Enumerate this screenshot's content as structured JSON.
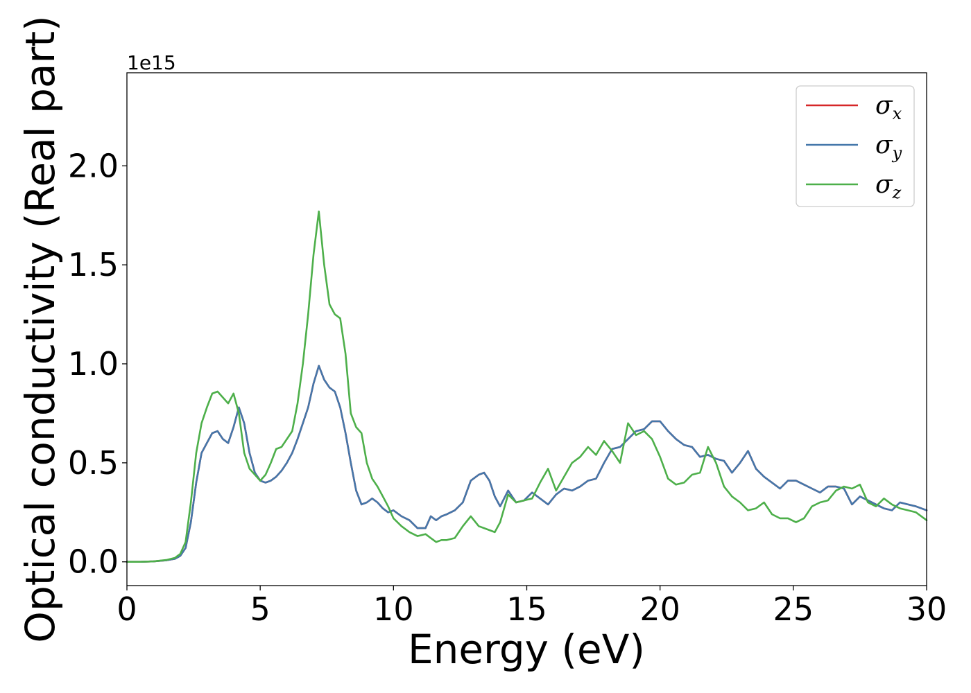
{
  "chart_data": {
    "type": "line",
    "xlabel": "Energy (eV)",
    "ylabel": "Optical conductivity (Real part)",
    "y_offset_label": "1e15",
    "xlim": [
      0,
      30
    ],
    "ylim": [
      -0.12,
      2.47
    ],
    "x_ticks": [
      0,
      5,
      10,
      15,
      20,
      25,
      30
    ],
    "x_tick_labels": [
      "0",
      "5",
      "10",
      "15",
      "20",
      "25",
      "30"
    ],
    "y_ticks": [
      0.0,
      0.5,
      1.0,
      1.5,
      2.0
    ],
    "y_tick_labels": [
      "0.0",
      "0.5",
      "1.0",
      "1.5",
      "2.0"
    ],
    "grid": false,
    "legend_position": "top-right",
    "x": [
      0,
      0.5,
      1,
      1.5,
      1.8,
      2.0,
      2.2,
      2.4,
      2.6,
      2.8,
      3.0,
      3.2,
      3.4,
      3.6,
      3.8,
      4.0,
      4.2,
      4.4,
      4.6,
      4.8,
      5.0,
      5.2,
      5.4,
      5.6,
      5.8,
      6.0,
      6.2,
      6.4,
      6.6,
      6.8,
      7.0,
      7.2,
      7.4,
      7.6,
      7.8,
      8.0,
      8.2,
      8.4,
      8.6,
      8.8,
      9.0,
      9.2,
      9.4,
      9.6,
      9.8,
      10.0,
      10.3,
      10.6,
      10.9,
      11.2,
      11.4,
      11.6,
      11.8,
      12.0,
      12.3,
      12.6,
      12.9,
      13.2,
      13.4,
      13.6,
      13.8,
      14.0,
      14.3,
      14.6,
      14.9,
      15.2,
      15.5,
      15.8,
      16.1,
      16.4,
      16.7,
      17.0,
      17.3,
      17.6,
      17.9,
      18.2,
      18.5,
      18.8,
      19.1,
      19.4,
      19.7,
      20.0,
      20.3,
      20.6,
      20.9,
      21.2,
      21.5,
      21.8,
      22.1,
      22.4,
      22.7,
      23.0,
      23.3,
      23.6,
      23.9,
      24.2,
      24.5,
      24.8,
      25.1,
      25.4,
      25.7,
      26.0,
      26.3,
      26.6,
      26.9,
      27.2,
      27.5,
      27.8,
      28.1,
      28.4,
      28.7,
      29.0,
      29.3,
      29.6,
      30.0
    ],
    "series": [
      {
        "name": "σx",
        "color": "#d62728",
        "values": [
          0,
          0,
          0.002,
          0.008,
          0.015,
          0.03,
          0.07,
          0.2,
          0.4,
          0.55,
          0.6,
          0.65,
          0.66,
          0.62,
          0.6,
          0.68,
          0.78,
          0.7,
          0.55,
          0.45,
          0.41,
          0.4,
          0.41,
          0.43,
          0.46,
          0.5,
          0.55,
          0.62,
          0.7,
          0.78,
          0.9,
          0.99,
          0.92,
          0.88,
          0.86,
          0.78,
          0.65,
          0.5,
          0.36,
          0.29,
          0.3,
          0.32,
          0.3,
          0.27,
          0.25,
          0.26,
          0.23,
          0.21,
          0.17,
          0.17,
          0.23,
          0.21,
          0.23,
          0.24,
          0.26,
          0.3,
          0.41,
          0.44,
          0.45,
          0.41,
          0.33,
          0.28,
          0.36,
          0.3,
          0.31,
          0.35,
          0.32,
          0.29,
          0.34,
          0.37,
          0.36,
          0.38,
          0.41,
          0.42,
          0.5,
          0.57,
          0.58,
          0.62,
          0.66,
          0.67,
          0.71,
          0.71,
          0.66,
          0.62,
          0.59,
          0.58,
          0.53,
          0.54,
          0.52,
          0.51,
          0.45,
          0.5,
          0.56,
          0.47,
          0.43,
          0.4,
          0.37,
          0.41,
          0.41,
          0.39,
          0.37,
          0.35,
          0.38,
          0.38,
          0.37,
          0.29,
          0.33,
          0.31,
          0.29,
          0.27,
          0.26,
          0.3,
          0.29,
          0.28,
          0.26
        ]
      },
      {
        "name": "σy",
        "color": "#4477aa",
        "values": [
          0,
          0,
          0.002,
          0.008,
          0.015,
          0.03,
          0.07,
          0.2,
          0.4,
          0.55,
          0.6,
          0.65,
          0.66,
          0.62,
          0.6,
          0.68,
          0.78,
          0.7,
          0.55,
          0.45,
          0.41,
          0.4,
          0.41,
          0.43,
          0.46,
          0.5,
          0.55,
          0.62,
          0.7,
          0.78,
          0.9,
          0.99,
          0.92,
          0.88,
          0.86,
          0.78,
          0.65,
          0.5,
          0.36,
          0.29,
          0.3,
          0.32,
          0.3,
          0.27,
          0.25,
          0.26,
          0.23,
          0.21,
          0.17,
          0.17,
          0.23,
          0.21,
          0.23,
          0.24,
          0.26,
          0.3,
          0.41,
          0.44,
          0.45,
          0.41,
          0.33,
          0.28,
          0.36,
          0.3,
          0.31,
          0.35,
          0.32,
          0.29,
          0.34,
          0.37,
          0.36,
          0.38,
          0.41,
          0.42,
          0.5,
          0.57,
          0.58,
          0.62,
          0.66,
          0.67,
          0.71,
          0.71,
          0.66,
          0.62,
          0.59,
          0.58,
          0.53,
          0.54,
          0.52,
          0.51,
          0.45,
          0.5,
          0.56,
          0.47,
          0.43,
          0.4,
          0.37,
          0.41,
          0.41,
          0.39,
          0.37,
          0.35,
          0.38,
          0.38,
          0.37,
          0.29,
          0.33,
          0.31,
          0.29,
          0.27,
          0.26,
          0.3,
          0.29,
          0.28,
          0.26
        ]
      },
      {
        "name": "σz",
        "color": "#4daf4a",
        "values": [
          0,
          0,
          0.002,
          0.01,
          0.02,
          0.04,
          0.1,
          0.3,
          0.55,
          0.7,
          0.78,
          0.85,
          0.86,
          0.83,
          0.8,
          0.85,
          0.75,
          0.55,
          0.47,
          0.44,
          0.41,
          0.44,
          0.5,
          0.57,
          0.58,
          0.62,
          0.66,
          0.8,
          1.0,
          1.25,
          1.55,
          1.77,
          1.5,
          1.3,
          1.25,
          1.23,
          1.05,
          0.75,
          0.68,
          0.65,
          0.5,
          0.42,
          0.38,
          0.33,
          0.28,
          0.22,
          0.18,
          0.15,
          0.13,
          0.14,
          0.12,
          0.1,
          0.11,
          0.11,
          0.12,
          0.18,
          0.23,
          0.18,
          0.17,
          0.16,
          0.15,
          0.2,
          0.34,
          0.3,
          0.31,
          0.32,
          0.4,
          0.47,
          0.36,
          0.43,
          0.5,
          0.53,
          0.58,
          0.54,
          0.61,
          0.56,
          0.5,
          0.7,
          0.64,
          0.66,
          0.62,
          0.53,
          0.42,
          0.39,
          0.4,
          0.44,
          0.45,
          0.58,
          0.5,
          0.38,
          0.33,
          0.3,
          0.26,
          0.27,
          0.3,
          0.24,
          0.22,
          0.22,
          0.2,
          0.22,
          0.28,
          0.3,
          0.31,
          0.36,
          0.38,
          0.37,
          0.39,
          0.3,
          0.28,
          0.32,
          0.29,
          0.27,
          0.26,
          0.25,
          0.21
        ]
      }
    ]
  }
}
